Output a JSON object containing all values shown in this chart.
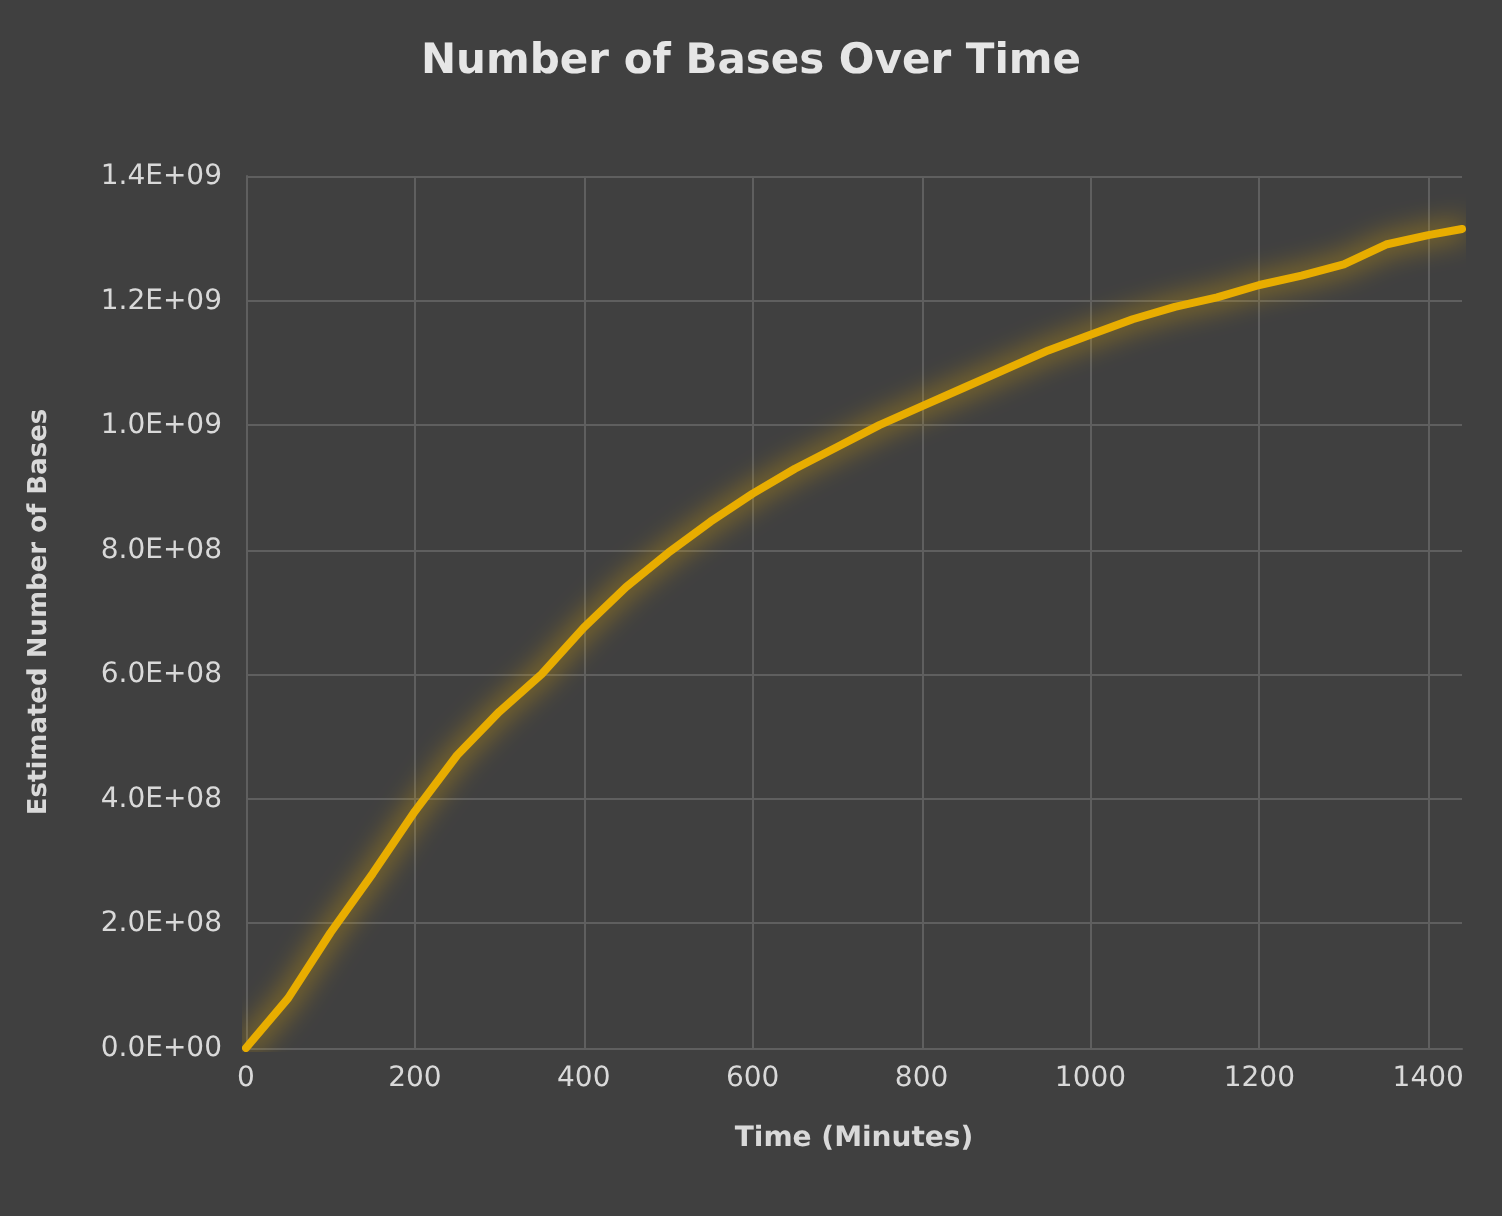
{
  "chart_data": {
    "type": "line",
    "title": "Number of Bases Over Time",
    "xlabel": "Time (Minutes)",
    "ylabel": "Estimated Number of Bases",
    "x": [
      0,
      50,
      100,
      150,
      200,
      250,
      300,
      350,
      400,
      450,
      500,
      550,
      600,
      650,
      700,
      750,
      800,
      850,
      900,
      950,
      1000,
      1050,
      1100,
      1150,
      1200,
      1250,
      1300,
      1350,
      1400,
      1440
    ],
    "series": [
      {
        "color": "#e8ad00",
        "values": [
          0,
          80000000,
          185000000,
          280000000,
          380000000,
          470000000,
          540000000,
          600000000,
          675000000,
          740000000,
          795000000,
          845000000,
          890000000,
          930000000,
          965000000,
          1000000000,
          1030000000,
          1060000000,
          1090000000,
          1120000000,
          1145000000,
          1170000000,
          1190000000,
          1205000000,
          1225000000,
          1240000000,
          1258000000,
          1290000000,
          1305000000,
          1315000000
        ]
      }
    ],
    "xlim": [
      0,
      1440
    ],
    "xticks": [
      0,
      200,
      400,
      600,
      800,
      1000,
      1200,
      1400
    ],
    "ylim": [
      0,
      1400000000
    ],
    "yticks": [
      {
        "value": 0,
        "label": "0.0E+00"
      },
      {
        "value": 200000000,
        "label": "2.0E+08"
      },
      {
        "value": 400000000,
        "label": "4.0E+08"
      },
      {
        "value": 600000000,
        "label": "6.0E+08"
      },
      {
        "value": 800000000,
        "label": "8.0E+08"
      },
      {
        "value": 1000000000,
        "label": "1.0E+09"
      },
      {
        "value": 1200000000,
        "label": "1.2E+09"
      },
      {
        "value": 1400000000,
        "label": "1.4E+09"
      }
    ],
    "grid": true,
    "marker": "none",
    "line_style": "solid"
  }
}
